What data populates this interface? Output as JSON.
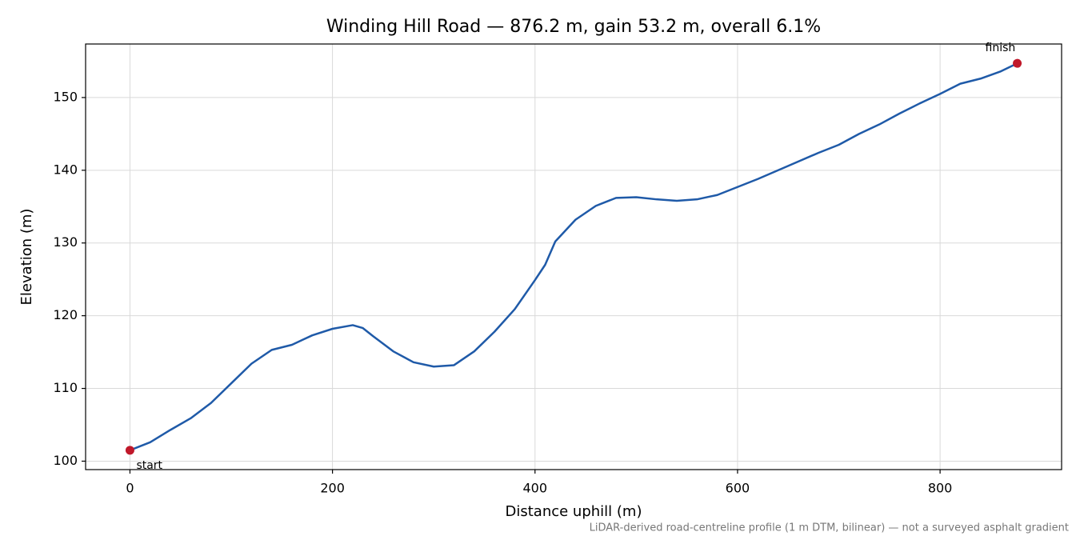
{
  "chart_data": {
    "type": "line",
    "title": "Winding Hill Road — 876.2 m, gain 53.2 m, overall 6.1%",
    "x_label": "Distance uphill (m)",
    "y_label": "Elevation (m)",
    "note": "LiDAR-derived road-centreline profile (1 m DTM, bilinear) — not a surveyed asphalt gradient",
    "x": [
      0,
      20,
      40,
      60,
      80,
      100,
      120,
      140,
      160,
      180,
      200,
      220,
      230,
      240,
      260,
      280,
      300,
      320,
      340,
      360,
      380,
      400,
      410,
      420,
      440,
      460,
      480,
      500,
      520,
      540,
      560,
      580,
      600,
      620,
      650,
      680,
      700,
      720,
      740,
      760,
      780,
      800,
      820,
      840,
      860,
      876.2
    ],
    "series": [
      {
        "name": "Elevation",
        "color": "#1f5aa8",
        "values": [
          101.5,
          102.6,
          104.3,
          105.9,
          108.0,
          110.7,
          113.4,
          115.3,
          116.0,
          117.3,
          118.2,
          118.7,
          118.3,
          117.2,
          115.1,
          113.6,
          113.0,
          113.2,
          115.1,
          117.8,
          120.9,
          124.9,
          127.0,
          130.2,
          133.2,
          135.1,
          136.2,
          136.3,
          136.0,
          135.8,
          136.0,
          136.6,
          137.7,
          138.8,
          140.6,
          142.4,
          143.5,
          145.0,
          146.3,
          147.8,
          149.2,
          150.5,
          151.9,
          152.6,
          153.6,
          154.7
        ]
      }
    ],
    "annotations": [
      {
        "text": "start",
        "x": 0,
        "y": 101.5,
        "color": "#c0182a"
      },
      {
        "text": "finish",
        "x": 876.2,
        "y": 154.7,
        "color": "#c0182a"
      }
    ],
    "xlim": [
      -43.8,
      920
    ],
    "ylim": [
      98.84,
      157.36
    ],
    "xticks": [
      0,
      200,
      400,
      600,
      800
    ],
    "yticks": [
      100,
      110,
      120,
      130,
      140,
      150
    ],
    "grid": true
  }
}
